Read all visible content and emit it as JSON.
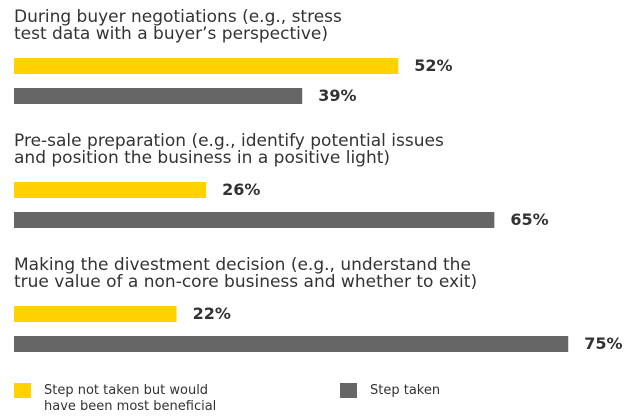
{
  "chart_data": {
    "type": "bar",
    "orientation": "horizontal",
    "categories": [
      "During buyer negotiations (e.g., stress\ntest data with a buyer’s perspective)",
      "Pre-sale preparation (e.g., identify potential issues\nand position the business in a positive light)",
      "Making the divestment decision (e.g., understand the\ntrue value of a non-core business and whether to exit)"
    ],
    "series": [
      {
        "name": "Step not taken but would\nhave been most beneficial",
        "color": "#ffd200",
        "values": [
          52,
          26,
          22
        ],
        "value_labels": [
          "52%",
          "26%",
          "22%"
        ]
      },
      {
        "name": "Step taken",
        "color": "#666666",
        "values": [
          39,
          65,
          75
        ],
        "value_labels": [
          "39%",
          "65%",
          "75%"
        ]
      }
    ],
    "legend": "bottom"
  }
}
